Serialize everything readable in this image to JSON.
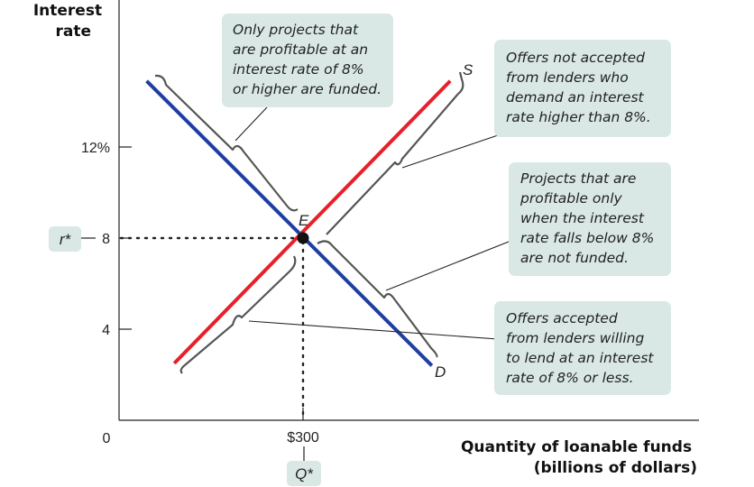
{
  "chart_data": {
    "type": "line",
    "y_title": [
      "Interest",
      "rate"
    ],
    "x_title": [
      "Quantity of loanable funds",
      "(billions of dollars)"
    ],
    "origin_label": "0",
    "y_ticks": [
      {
        "value": 12,
        "label": "12%"
      },
      {
        "value": 8,
        "label": "8"
      },
      {
        "value": 4,
        "label": "4"
      }
    ],
    "x_ticks": [
      {
        "value": 300,
        "label": "$300"
      }
    ],
    "xlim": [
      0,
      640
    ],
    "ylim": [
      0,
      18
    ],
    "series": [
      {
        "name": "S",
        "color": "#e8202a",
        "points": [
          [
            90,
            2.5
          ],
          [
            540,
            14.9
          ]
        ]
      },
      {
        "name": "D",
        "color": "#1f3fa0",
        "points": [
          [
            45,
            14.9
          ],
          [
            510,
            2.4
          ]
        ]
      }
    ],
    "equilibrium": {
      "label": "E",
      "x": 300,
      "y": 8
    },
    "r_star_label": "r*",
    "q_star_label": "Q*",
    "callouts": [
      {
        "lines": [
          "Only projects that",
          "are profitable at an",
          "interest rate of 8%",
          "or higher are funded."
        ]
      },
      {
        "lines": [
          "Offers not accepted",
          "from lenders who",
          "demand an interest",
          "rate higher than 8%."
        ]
      },
      {
        "lines": [
          "Projects that are",
          "profitable only",
          "when the interest",
          "rate falls below 8%",
          "are not funded."
        ]
      },
      {
        "lines": [
          "Offers accepted",
          "from lenders willing",
          "to lend at an interest",
          "rate of 8% or less."
        ]
      }
    ],
    "colors": {
      "callout_bg": "#d9e8e4",
      "supply": "#e8202a",
      "demand": "#1f3fa0",
      "bracket": "#555555"
    }
  }
}
